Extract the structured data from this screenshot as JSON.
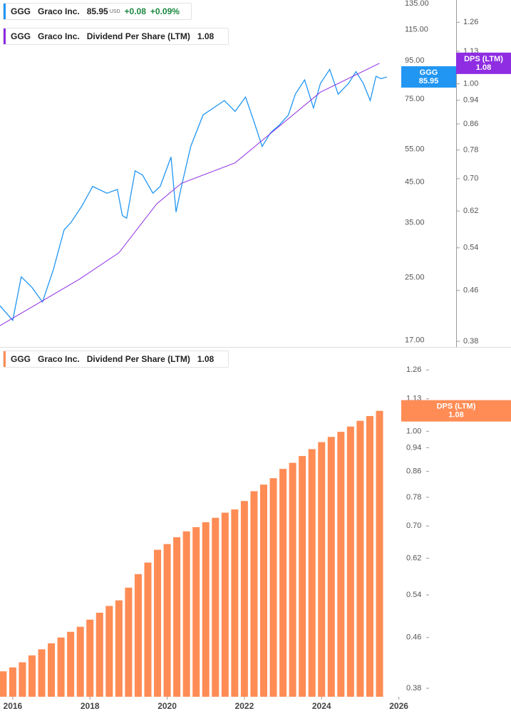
{
  "chart_data": [
    {
      "type": "line",
      "ticker": "GGG",
      "company": "Graco Inc.",
      "currency": "USD",
      "change": "+0.08",
      "change_pct": "+0.09%",
      "metric": "Dividend Per Share (LTM)",
      "xlim": [
        2015.67,
        2026.1
      ],
      "ylim": [
        16.3,
        138
      ],
      "log_y": true,
      "yticks": [
        {
          "value": 135,
          "label": "135.00"
        },
        {
          "value": 115,
          "label": "115.00"
        },
        {
          "value": 95,
          "label": "95.00"
        },
        {
          "value": 75,
          "label": "75.00"
        },
        {
          "value": 55,
          "label": "55.00"
        },
        {
          "value": 45,
          "label": "45.00"
        },
        {
          "value": 35,
          "label": "35.00"
        },
        {
          "value": 25,
          "label": "25.00"
        },
        {
          "value": 17,
          "label": "17.00"
        }
      ],
      "y2lim": [
        0.372,
        1.37
      ],
      "y2ticks": [
        1.26,
        1.13,
        {
          "value": 1.0,
          "label": "1.00"
        },
        0.94,
        0.86,
        0.78,
        {
          "value": 0.7,
          "label": "0.70"
        },
        0.62,
        0.54,
        0.46,
        0.38
      ],
      "series": [
        {
          "name": "GGG",
          "color": "#2196f3",
          "x": [
            2015.67,
            2016.0,
            2016.22,
            2016.5,
            2016.77,
            2017.05,
            2017.33,
            2017.51,
            2017.79,
            2018.07,
            2018.44,
            2018.71,
            2018.84,
            2018.95,
            2019.17,
            2019.36,
            2019.63,
            2019.82,
            2020.1,
            2020.23,
            2020.37,
            2020.61,
            2020.93,
            2021.2,
            2021.48,
            2021.76,
            2022.03,
            2022.22,
            2022.46,
            2022.68,
            2022.9,
            2023.14,
            2023.32,
            2023.56,
            2023.79,
            2023.97,
            2024.21,
            2024.43,
            2024.7,
            2024.89,
            2025.08,
            2025.26,
            2025.41,
            2025.54,
            2025.69
          ],
          "values": [
            21,
            19.2,
            25.1,
            23.5,
            21.5,
            26.2,
            33.5,
            35.1,
            38.8,
            43.8,
            42,
            43,
            36.6,
            36,
            48.2,
            47,
            42,
            43.8,
            52.5,
            37.4,
            43.8,
            56,
            68,
            71,
            74.3,
            69.5,
            75.9,
            66.6,
            56,
            61,
            63.8,
            68,
            77.3,
            84.4,
            71,
            82.6,
            90,
            77.3,
            82.6,
            88.8,
            82.6,
            74.3,
            86.3,
            85,
            85.95
          ]
        },
        {
          "name": "DPS (LTM)",
          "color": "#8e2de2",
          "axis": "y2",
          "x": [
            2015.67,
            2017.73,
            2018.75,
            2019.73,
            2020.37,
            2021.76,
            2023.97,
            2025.5
          ],
          "values": [
            0.403,
            0.48,
            0.53,
            0.637,
            0.688,
            0.743,
            0.969,
            1.08
          ]
        }
      ]
    },
    {
      "type": "bar",
      "xlim": [
        2015.67,
        2026.1
      ],
      "xticks": [
        2016,
        2018,
        2020,
        2022,
        2024,
        2026
      ],
      "ylim": [
        0.368,
        1.37
      ],
      "log_y": true,
      "yticks": [
        1.26,
        1.13,
        {
          "value": 1.0,
          "label": "1.00"
        },
        0.94,
        0.86,
        0.78,
        {
          "value": 0.7,
          "label": "0.70"
        },
        0.62,
        0.54,
        0.46,
        0.38
      ],
      "series": [
        {
          "name": "DPS (LTM)",
          "color": "#ff8c55",
          "x": [
            2015.75,
            2016,
            2016.25,
            2016.5,
            2016.75,
            2017,
            2017.25,
            2017.5,
            2017.75,
            2018,
            2018.25,
            2018.5,
            2018.75,
            2019,
            2019.25,
            2019.5,
            2019.75,
            2020,
            2020.25,
            2020.5,
            2020.75,
            2021,
            2021.25,
            2021.5,
            2021.75,
            2022,
            2022.25,
            2022.5,
            2022.75,
            2023,
            2023.25,
            2023.5,
            2023.75,
            2024,
            2024.25,
            2024.5,
            2024.75,
            2025,
            2025.25,
            2025.5
          ],
          "values": [
            0.405,
            0.411,
            0.419,
            0.43,
            0.44,
            0.45,
            0.46,
            0.47,
            0.479,
            0.492,
            0.505,
            0.518,
            0.529,
            0.555,
            0.584,
            0.61,
            0.64,
            0.654,
            0.671,
            0.686,
            0.697,
            0.71,
            0.722,
            0.736,
            0.745,
            0.769,
            0.798,
            0.818,
            0.838,
            0.868,
            0.888,
            0.911,
            0.935,
            0.96,
            0.979,
            0.998,
            1.018,
            1.04,
            1.059,
            1.08
          ]
        }
      ]
    }
  ]
}
